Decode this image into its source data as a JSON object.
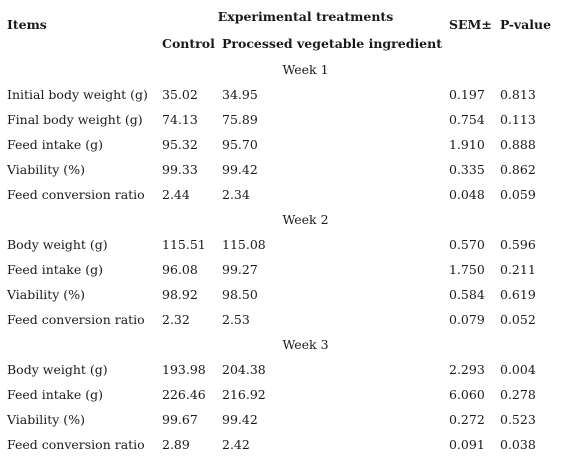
{
  "header": {
    "items": "Items",
    "experimental": "Experimental treatments",
    "control": "Control",
    "processed": "Processed vegetable ingredient",
    "sem": "SEM±",
    "pvalue": "P-value"
  },
  "sections": [
    {
      "week": "Week 1",
      "rows": [
        {
          "item": "Initial body weight (g)",
          "control": "35.02",
          "processed": "34.95",
          "sem": "0.197",
          "p": "0.813"
        },
        {
          "item": "Final body weight (g)",
          "control": "74.13",
          "processed": "75.89",
          "sem": "0.754",
          "p": "0.113"
        },
        {
          "item": "Feed intake (g)",
          "control": "95.32",
          "processed": "95.70",
          "sem": "1.910",
          "p": "0.888"
        },
        {
          "item": "Viability (%)",
          "control": "99.33",
          "processed": "99.42",
          "sem": "0.335",
          "p": "0.862"
        },
        {
          "item": "Feed conversion ratio",
          "control": "2.44",
          "processed": "2.34",
          "sem": "0.048",
          "p": "0.059"
        }
      ]
    },
    {
      "week": "Week 2",
      "rows": [
        {
          "item": "Body weight (g)",
          "control": "115.51",
          "processed": "115.08",
          "sem": "0.570",
          "p": "0.596"
        },
        {
          "item": "Feed intake (g)",
          "control": "96.08",
          "processed": "99.27",
          "sem": "1.750",
          "p": "0.211"
        },
        {
          "item": "Viability (%)",
          "control": "98.92",
          "processed": "98.50",
          "sem": "0.584",
          "p": "0.619"
        },
        {
          "item": "Feed conversion ratio",
          "control": "2.32",
          "processed": "2.53",
          "sem": "0.079",
          "p": "0.052"
        }
      ]
    },
    {
      "week": "Week 3",
      "rows": [
        {
          "item": "Body weight (g)",
          "control": "193.98",
          "processed": "204.38",
          "sem": "2.293",
          "p": "0.004"
        },
        {
          "item": "Feed intake (g)",
          "control": "226.46",
          "processed": "216.92",
          "sem": "6.060",
          "p": "0.278"
        },
        {
          "item": "Viability (%)",
          "control": "99.67",
          "processed": "99.42",
          "sem": "0.272",
          "p": "0.523"
        },
        {
          "item": "Feed conversion ratio",
          "control": "2.89",
          "processed": "2.42",
          "sem": "0.091",
          "p": "0.038"
        }
      ]
    }
  ]
}
